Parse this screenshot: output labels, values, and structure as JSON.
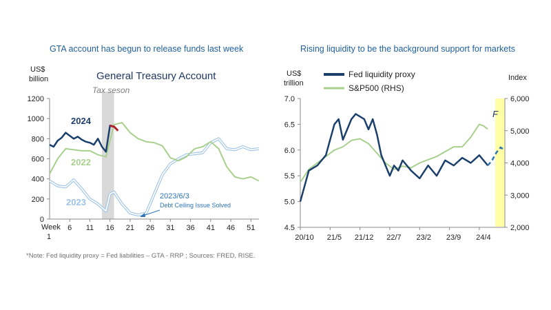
{
  "left": {
    "panel_title": "GTA account has begun to release funds last week",
    "chart_data": {
      "type": "line",
      "title": "General Treasury Account",
      "unit_label": "US$",
      "unit_label2": "billion",
      "xlabel": "Week",
      "xlabel2": "1",
      "ylim": [
        0,
        1200
      ],
      "yticks": [
        "0",
        "200",
        "400",
        "600",
        "800",
        "1000",
        "1200"
      ],
      "xticks": [
        "6",
        "11",
        "16",
        "21",
        "26",
        "31",
        "36",
        "41",
        "46",
        "51"
      ],
      "xtick_values": [
        6,
        11,
        16,
        21,
        26,
        31,
        36,
        41,
        46,
        51
      ],
      "xlim": [
        1,
        53
      ],
      "shaded_region": {
        "from": 14,
        "to": 17,
        "label": "Tax seson"
      },
      "series": [
        {
          "name": "2024",
          "color": "#1b3f6b",
          "x": [
            1,
            2,
            3,
            4,
            5,
            6,
            7,
            8,
            9,
            10,
            11,
            12,
            13,
            14,
            15,
            16,
            17
          ],
          "values": [
            740,
            720,
            780,
            810,
            860,
            830,
            800,
            820,
            790,
            770,
            760,
            740,
            800,
            720,
            670,
            930,
            920
          ]
        },
        {
          "name": "2024 (latest)",
          "color": "#b3202a",
          "x": [
            16,
            17,
            18
          ],
          "values": [
            930,
            920,
            880
          ]
        },
        {
          "name": "2022",
          "color": "#a8d08d",
          "x": [
            1,
            3,
            5,
            7,
            9,
            11,
            13,
            15,
            17,
            19,
            21,
            23,
            25,
            27,
            29,
            31,
            33,
            35,
            37,
            39,
            41,
            43,
            45,
            47,
            49,
            51,
            53
          ],
          "values": [
            450,
            600,
            700,
            690,
            680,
            680,
            640,
            620,
            940,
            960,
            860,
            800,
            770,
            760,
            730,
            610,
            580,
            620,
            700,
            720,
            770,
            700,
            520,
            420,
            400,
            420,
            380
          ]
        },
        {
          "name": "2023",
          "color": "#9dc3e6",
          "x": [
            1,
            3,
            5,
            7,
            9,
            11,
            13,
            15,
            16,
            17,
            19,
            21,
            23,
            25,
            27,
            29,
            31,
            33,
            35,
            37,
            39,
            41,
            43,
            45,
            47,
            49,
            51,
            53
          ],
          "values": [
            380,
            330,
            320,
            390,
            300,
            200,
            150,
            80,
            250,
            270,
            150,
            60,
            40,
            60,
            250,
            440,
            550,
            600,
            640,
            650,
            660,
            760,
            800,
            700,
            690,
            720,
            690,
            700
          ]
        }
      ],
      "labels": {
        "s2024": "2024",
        "s2022": "2022",
        "s2023": "2023"
      },
      "annotation": {
        "date": "2023/6/3",
        "text": "Debt Ceiling Issue Solved"
      }
    }
  },
  "right": {
    "panel_title": "Rising liquidity to be the background support for markets",
    "chart_data": {
      "type": "line",
      "unit_left": "US$",
      "unit_left2": "trillion",
      "unit_right": "Index",
      "ylim_left": [
        4.5,
        7.0
      ],
      "ylim_right": [
        2000,
        6000
      ],
      "yticks_left": [
        "4.5",
        "5.0",
        "5.5",
        "6.0",
        "6.5",
        "7.0"
      ],
      "yticks_right": [
        "2,000",
        "3,000",
        "4,000",
        "5,000",
        "6,000"
      ],
      "xticks": [
        "20/10",
        "21/5",
        "21/12",
        "22/7",
        "23/2",
        "23/9",
        "24/4"
      ],
      "forecast_label": "F",
      "series": [
        {
          "name": "Fed liquidity proxy",
          "color": "#1b3f6b",
          "axis": "left",
          "x": [
            0,
            2,
            4,
            6,
            7,
            8,
            9,
            10,
            11,
            12,
            13,
            14,
            15,
            16,
            17,
            18,
            19,
            20,
            21,
            22,
            23,
            24,
            26,
            28,
            30,
            32,
            34,
            36,
            38,
            40,
            42,
            44
          ],
          "values": [
            5.0,
            5.6,
            5.7,
            5.9,
            6.2,
            6.5,
            6.6,
            6.2,
            6.4,
            6.6,
            6.7,
            6.65,
            6.6,
            6.4,
            6.6,
            6.3,
            5.9,
            5.7,
            5.5,
            5.7,
            5.6,
            5.8,
            5.6,
            5.45,
            5.7,
            5.5,
            5.8,
            5.7,
            5.85,
            5.75,
            5.9,
            5.7
          ]
        },
        {
          "name": "S&P500 (RHS)",
          "color": "#a8d08d",
          "axis": "right",
          "x": [
            0,
            2,
            4,
            6,
            8,
            10,
            12,
            14,
            16,
            18,
            20,
            22,
            24,
            26,
            28,
            30,
            32,
            34,
            36,
            38,
            40,
            42,
            43,
            44
          ],
          "values": [
            3400,
            3800,
            4000,
            4200,
            4400,
            4500,
            4700,
            4750,
            4600,
            4300,
            4000,
            3800,
            3900,
            3850,
            4000,
            4100,
            4200,
            4350,
            4500,
            4500,
            4800,
            5200,
            5150,
            5050
          ]
        }
      ],
      "forecast": {
        "x": [
          44,
          45,
          46,
          47,
          48
        ],
        "values": [
          5.7,
          5.8,
          5.95,
          6.05,
          6.0
        ]
      },
      "xtick_positions": [
        0,
        7,
        14,
        21,
        28,
        35,
        42
      ],
      "xlim": [
        0,
        48
      ]
    }
  },
  "note": "*Note: Fed liquidity proxy = Fed liabilities – GTA - RRP ; Sources: FRED, RISE."
}
